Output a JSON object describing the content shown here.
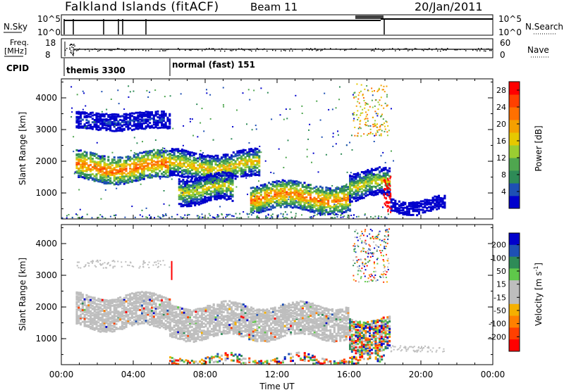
{
  "header": {
    "station": "Falkland Islands (fitACF)",
    "beam": "Beam 11",
    "date": "20/Jan/2011"
  },
  "top_panels": {
    "nsky_label": "N.Sky",
    "nsearch_label": "N.Search",
    "nsky_ticks": [
      "10^5",
      "10^0"
    ],
    "nsearch_ticks": [
      "10^5",
      "10^0"
    ],
    "freq_label_1": "Freq.",
    "freq_label_2": "[MHz]",
    "freq_ticks": [
      "18",
      "8"
    ],
    "nave_label": "Nave",
    "nave_ticks": [
      "60",
      "0"
    ],
    "cpid_label": "CPID",
    "cpid_1": "themis 3300",
    "cpid_2": "normal (fast) 151"
  },
  "colors": {
    "power_scale": [
      "#0000cc",
      "#1e50b4",
      "#2e8b57",
      "#4fa64f",
      "#9acd32",
      "#e6c800",
      "#f5a000",
      "#ff7000",
      "#ff4000",
      "#ff0000"
    ],
    "velocity_scale": [
      "#0000cc",
      "#1e50b4",
      "#2e8b57",
      "#5fc84a",
      "#bebebe",
      "#bebebe",
      "#f5b000",
      "#ff8000",
      "#ff4000",
      "#ff0000"
    ]
  },
  "chart_data": [
    {
      "type": "heatmap",
      "title": "",
      "xlabel": "Time UT",
      "ylabel": "Slant Range [km]",
      "xlim": [
        "00:00",
        "24:00"
      ],
      "ylim": [
        180,
        4600
      ],
      "x_ticks": [
        "00:00",
        "04:00",
        "08:00",
        "12:00",
        "16:00",
        "20:00",
        "00:00"
      ],
      "y_ticks": [
        1000,
        2000,
        3000,
        4000
      ],
      "colorbar": {
        "label": "Power [dB]",
        "ticks": [
          4,
          8,
          12,
          16,
          20,
          24,
          28
        ],
        "range": [
          0,
          30
        ]
      },
      "features": [
        {
          "start_hour": 0.8,
          "end_hour": 6.0,
          "range_km": 1850,
          "power_db": 27
        },
        {
          "start_hour": 6.0,
          "end_hour": 11.0,
          "range_km": 1900,
          "power_db": 22
        },
        {
          "start_hour": 6.5,
          "end_hour": 9.5,
          "range_km": 1150,
          "power_db": 20
        },
        {
          "start_hour": 10.5,
          "end_hour": 16.0,
          "range_km": 900,
          "power_db": 26
        },
        {
          "start_hour": 16.0,
          "end_hour": 18.3,
          "range_km": 1300,
          "power_db": 20
        },
        {
          "start_hour": 18.3,
          "end_hour": 21.3,
          "range_km": 650,
          "power_db": 4
        },
        {
          "start_hour": 0.8,
          "end_hour": 6.0,
          "range_km": 3300,
          "power_db": 8
        }
      ]
    },
    {
      "type": "heatmap",
      "title": "",
      "xlabel": "Time UT",
      "ylabel": "Slant Range [km]",
      "xlim": [
        "00:00",
        "24:00"
      ],
      "ylim": [
        180,
        4600
      ],
      "x_ticks": [
        "00:00",
        "04:00",
        "08:00",
        "12:00",
        "16:00",
        "20:00",
        "00:00"
      ],
      "y_ticks": [
        1000,
        2000,
        3000,
        4000
      ],
      "colorbar": {
        "label": "Velocity [m s^-1]",
        "ticks": [
          200,
          100,
          50,
          15,
          -15,
          -50,
          -100,
          -200
        ]
      },
      "features": [
        {
          "start_hour": 0.8,
          "end_hour": 6.0,
          "range_km": 1900,
          "velocity": 0
        },
        {
          "start_hour": 6.0,
          "end_hour": 16.0,
          "range_km": 1600,
          "velocity": 0
        },
        {
          "start_hour": 16.0,
          "end_hour": 18.3,
          "range_km": 1200,
          "velocity": -50
        },
        {
          "start_hour": 6.0,
          "end_hour": 18.0,
          "range_km": 350,
          "velocity": -50
        }
      ]
    }
  ]
}
